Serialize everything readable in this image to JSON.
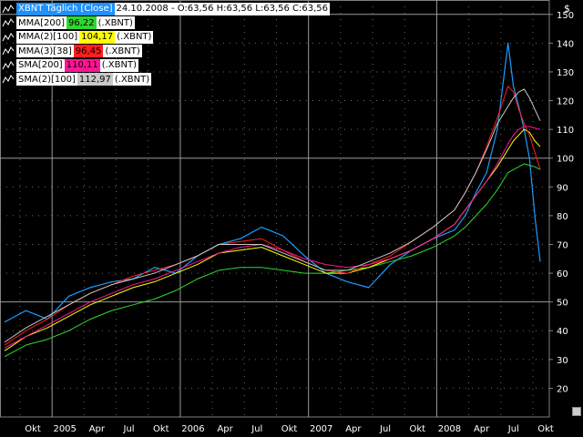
{
  "currency_symbol": "$",
  "legend": {
    "main_name": "XBNT Täglich [Close]",
    "main_info": "24.10.2008 - O:63,56 H:63,56 L:63,56 C:63,56",
    "items": [
      {
        "name": "MMA[200]",
        "value": "96,22",
        "suffix": "(.XBNT)",
        "color": "#2fd82f"
      },
      {
        "name": "MMA(2)[100]",
        "value": "104,17",
        "suffix": "(.XBNT)",
        "color": "#ffff00"
      },
      {
        "name": "MMA(3)[38]",
        "value": "96,45",
        "suffix": "(.XBNT)",
        "color": "#ff2020"
      },
      {
        "name": "SMA[200]",
        "value": "110,11",
        "suffix": "(.XBNT)",
        "color": "#ff1493"
      },
      {
        "name": "SMA(2)[100]",
        "value": "112,97",
        "suffix": "(.XBNT)",
        "color": "#c8c8c8"
      }
    ]
  },
  "chart_data": {
    "type": "line",
    "ylim": [
      10,
      155
    ],
    "y_ticks": [
      20,
      30,
      40,
      50,
      60,
      70,
      80,
      90,
      100,
      110,
      120,
      130,
      140,
      150
    ],
    "x_ticks": [
      "Okt",
      "2005",
      "Apr",
      "Jul",
      "Okt",
      "2006",
      "Apr",
      "Jul",
      "Okt",
      "2007",
      "Apr",
      "Jul",
      "Okt",
      "2008",
      "Apr",
      "Jul",
      "Okt"
    ],
    "grid_y": [
      50,
      100,
      150
    ],
    "x_index_range": [
      0,
      100
    ],
    "x": [
      0,
      4,
      8,
      12,
      16,
      20,
      24,
      28,
      32,
      36,
      40,
      44,
      48,
      52,
      56,
      60,
      64,
      68,
      72,
      76,
      80,
      84,
      86,
      88,
      90,
      92,
      94,
      95,
      96,
      97,
      98,
      99,
      100
    ],
    "series": [
      {
        "name": "XBNT Täglich [Close]",
        "color": "#1e9bff",
        "values": [
          43,
          47,
          44,
          52,
          55,
          57,
          58,
          62,
          60,
          66,
          70,
          72,
          76,
          73,
          66,
          60,
          57,
          55,
          63,
          68,
          72,
          75,
          80,
          88,
          95,
          110,
          140,
          125,
          118,
          110,
          100,
          80,
          64
        ]
      },
      {
        "name": "MMA[200]",
        "color": "#2fd82f",
        "values": [
          31,
          35,
          37,
          40,
          44,
          47,
          49,
          51,
          54,
          58,
          61,
          62,
          62,
          61,
          60,
          60,
          61,
          62,
          64,
          66,
          69,
          73,
          76,
          80,
          84,
          89,
          95,
          96,
          97,
          98,
          97.5,
          97,
          96
        ]
      },
      {
        "name": "MMA(2)[100]",
        "color": "#ffff00",
        "values": [
          33,
          38,
          41,
          45,
          49,
          52,
          55,
          57,
          60,
          63,
          67,
          68,
          69,
          66,
          63,
          60,
          60,
          62,
          65,
          68,
          72,
          77,
          82,
          87,
          92,
          97,
          103,
          106,
          108,
          110,
          109,
          106,
          104
        ]
      },
      {
        "name": "MMA(3)[38]",
        "color": "#ff2020",
        "values": [
          35,
          40,
          44,
          49,
          53,
          56,
          59,
          61,
          63,
          66,
          70,
          71,
          72,
          68,
          64,
          61,
          60,
          63,
          66,
          71,
          76,
          82,
          88,
          95,
          104,
          114,
          125,
          123,
          117,
          112,
          108,
          102,
          96
        ]
      },
      {
        "name": "SMA[200]",
        "color": "#ff1493",
        "values": [
          34,
          38,
          42,
          46,
          50,
          53,
          56,
          58,
          61,
          64,
          67,
          69,
          70,
          68,
          65,
          63,
          62,
          63,
          65,
          68,
          72,
          77,
          82,
          87,
          92,
          98,
          105,
          108,
          110,
          111,
          111,
          110.5,
          110
        ]
      },
      {
        "name": "SMA(2)[100]",
        "color": "#c8c8c8",
        "values": [
          36,
          41,
          45,
          49,
          53,
          56,
          58,
          60,
          63,
          66,
          70,
          70,
          70,
          67,
          64,
          61,
          61,
          64,
          67,
          71,
          76,
          82,
          88,
          95,
          103,
          112,
          118,
          121,
          123,
          124,
          121,
          117,
          113
        ]
      }
    ]
  }
}
